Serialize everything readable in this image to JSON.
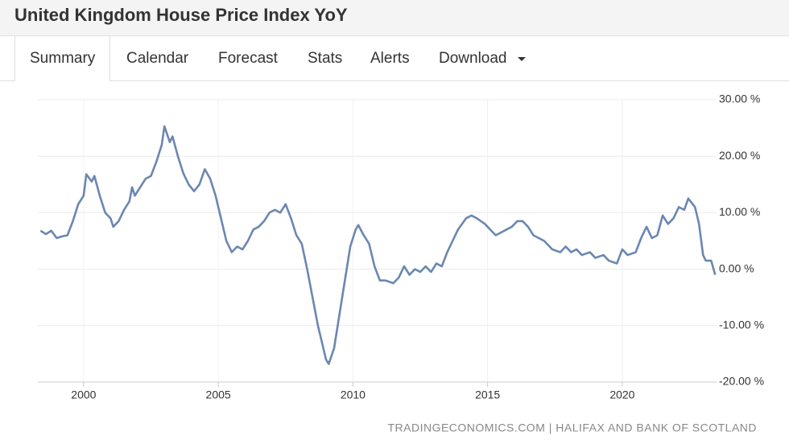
{
  "title": "United Kingdom House Price Index YoY",
  "tabs": [
    "Summary",
    "Calendar",
    "Forecast",
    "Stats",
    "Alerts",
    "Download"
  ],
  "chart_data": {
    "type": "line",
    "source": "TRADINGECONOMICS.COM | HALIFAX AND BANK OF SCOTLAND",
    "color": "#6b87b1",
    "grid": true,
    "xlim": [
      1998.3,
      2023.5
    ],
    "xticks": [
      2000,
      2005,
      2010,
      2015,
      2020
    ],
    "ylim": [
      -20,
      30
    ],
    "yticks": [
      {
        "value": -20,
        "label": "-20.00 %"
      },
      {
        "value": -10,
        "label": "-10.00 %"
      },
      {
        "value": 0,
        "label": "0.00 %"
      },
      {
        "value": 10,
        "label": "10.00 %"
      },
      {
        "value": 20,
        "label": "20.00 %"
      },
      {
        "value": 30,
        "label": "30.00 %"
      }
    ],
    "x": [
      1998.4,
      1998.6,
      1998.8,
      1999.0,
      1999.2,
      1999.4,
      1999.6,
      1999.8,
      2000.0,
      2000.1,
      2000.3,
      2000.4,
      2000.6,
      2000.8,
      2001.0,
      2001.1,
      2001.3,
      2001.5,
      2001.7,
      2001.8,
      2001.9,
      2002.1,
      2002.3,
      2002.5,
      2002.7,
      2002.9,
      2003.0,
      2003.2,
      2003.3,
      2003.5,
      2003.7,
      2003.9,
      2004.1,
      2004.3,
      2004.5,
      2004.7,
      2004.9,
      2005.1,
      2005.3,
      2005.5,
      2005.7,
      2005.9,
      2006.1,
      2006.3,
      2006.5,
      2006.7,
      2006.9,
      2007.1,
      2007.3,
      2007.5,
      2007.7,
      2007.9,
      2008.1,
      2008.3,
      2008.5,
      2008.7,
      2008.9,
      2009.0,
      2009.1,
      2009.3,
      2009.5,
      2009.7,
      2009.9,
      2010.1,
      2010.2,
      2010.4,
      2010.6,
      2010.8,
      2011.0,
      2011.2,
      2011.5,
      2011.7,
      2011.9,
      2012.1,
      2012.3,
      2012.5,
      2012.7,
      2012.9,
      2013.1,
      2013.3,
      2013.5,
      2013.7,
      2013.9,
      2014.2,
      2014.4,
      2014.6,
      2014.9,
      2015.1,
      2015.3,
      2015.5,
      2015.7,
      2015.9,
      2016.1,
      2016.3,
      2016.5,
      2016.7,
      2016.9,
      2017.1,
      2017.4,
      2017.7,
      2017.9,
      2018.1,
      2018.3,
      2018.5,
      2018.8,
      2019.0,
      2019.3,
      2019.5,
      2019.8,
      2020.0,
      2020.2,
      2020.5,
      2020.7,
      2020.9,
      2021.1,
      2021.3,
      2021.5,
      2021.7,
      2021.9,
      2022.1,
      2022.3,
      2022.45,
      2022.7,
      2022.85,
      2023.0,
      2023.1,
      2023.3,
      2023.45
    ],
    "values": [
      6.8,
      6.2,
      6.8,
      5.5,
      5.8,
      6.0,
      8.5,
      11.5,
      13.0,
      16.8,
      15.5,
      16.5,
      13.0,
      10.0,
      9.0,
      7.5,
      8.5,
      10.5,
      12.0,
      14.5,
      13.0,
      14.5,
      16.0,
      16.5,
      19.0,
      22.0,
      25.3,
      22.5,
      23.5,
      20.0,
      17.0,
      15.0,
      13.8,
      15.0,
      17.7,
      16.0,
      13.0,
      9.0,
      5.0,
      3.0,
      4.0,
      3.5,
      5.0,
      7.0,
      7.5,
      8.5,
      10.0,
      10.5,
      10.0,
      11.5,
      9.0,
      6.0,
      4.5,
      0.0,
      -5.0,
      -10.0,
      -14.0,
      -16.0,
      -16.8,
      -14.0,
      -8.0,
      -2.0,
      4.0,
      7.0,
      7.8,
      6.0,
      4.5,
      0.5,
      -2.0,
      -2.0,
      -2.5,
      -1.5,
      0.5,
      -1.0,
      0.0,
      -0.5,
      0.5,
      -0.5,
      1.0,
      0.5,
      3.0,
      5.0,
      7.0,
      9.0,
      9.5,
      9.0,
      8.0,
      7.0,
      6.0,
      6.5,
      7.0,
      7.5,
      8.5,
      8.5,
      7.5,
      6.0,
      5.5,
      5.0,
      3.5,
      3.0,
      4.0,
      3.0,
      3.5,
      2.5,
      3.0,
      2.0,
      2.5,
      1.5,
      1.0,
      3.5,
      2.5,
      3.0,
      5.5,
      7.5,
      5.5,
      6.0,
      9.5,
      8.0,
      9.0,
      11.0,
      10.5,
      12.5,
      11.0,
      8.0,
      2.5,
      1.5,
      1.5,
      -1.0
    ]
  }
}
